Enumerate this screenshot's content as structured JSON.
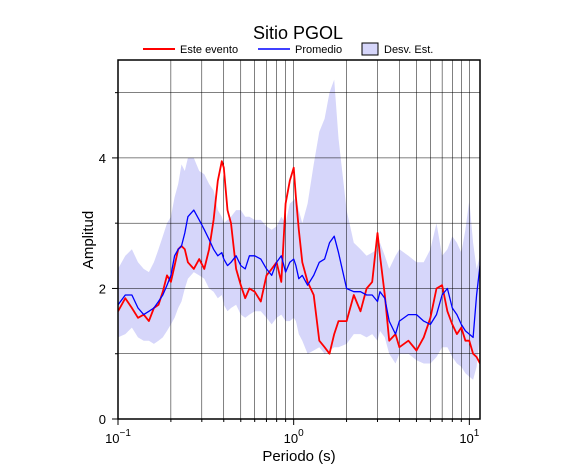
{
  "chart_data": {
    "type": "line",
    "title": "Sitio PGOL",
    "xlabel": "Periodo (s)",
    "ylabel": "Amplitud",
    "x_scale": "log",
    "xlim": [
      0.1,
      11.5
    ],
    "ylim": [
      0,
      5.5
    ],
    "y_ticks": [
      0,
      2,
      4
    ],
    "y_tick_labels": [
      "0",
      "2",
      "4"
    ],
    "x_ticks": [
      {
        "value": 0.1,
        "base": "10",
        "exp": "−1"
      },
      {
        "value": 1,
        "base": "10",
        "exp": "0"
      },
      {
        "value": 10,
        "base": "10",
        "exp": "1"
      }
    ],
    "grid": true,
    "legend": {
      "placement": "top",
      "entries": [
        {
          "label": "Este evento",
          "kind": "line",
          "color": "#ff0000"
        },
        {
          "label": "Promedio",
          "kind": "line",
          "color": "#0000ff"
        },
        {
          "label": "Desv. Est.",
          "kind": "band",
          "color": "#d6d6fa"
        }
      ]
    },
    "series": [
      {
        "name": "Este evento",
        "color": "#ff0000",
        "x": [
          0.1,
          0.11,
          0.12,
          0.13,
          0.14,
          0.15,
          0.16,
          0.17,
          0.18,
          0.19,
          0.2,
          0.21,
          0.22,
          0.23,
          0.24,
          0.25,
          0.27,
          0.29,
          0.31,
          0.33,
          0.35,
          0.37,
          0.39,
          0.4,
          0.42,
          0.44,
          0.47,
          0.5,
          0.53,
          0.56,
          0.6,
          0.65,
          0.7,
          0.75,
          0.8,
          0.85,
          0.9,
          0.95,
          1.0,
          1.03,
          1.07,
          1.12,
          1.2,
          1.3,
          1.4,
          1.5,
          1.6,
          1.7,
          1.8,
          2.0,
          2.2,
          2.4,
          2.6,
          2.8,
          3.0,
          3.1,
          3.3,
          3.5,
          3.8,
          4.0,
          4.5,
          5.0,
          5.5,
          6.0,
          6.5,
          7.0,
          7.5,
          8.0,
          8.5,
          9.0,
          9.5,
          10.0,
          10.5,
          11.0,
          11.5
        ],
        "y": [
          1.65,
          1.85,
          1.7,
          1.55,
          1.6,
          1.5,
          1.7,
          1.75,
          1.95,
          2.2,
          2.1,
          2.35,
          2.6,
          2.65,
          2.6,
          2.4,
          2.3,
          2.45,
          2.3,
          2.6,
          3.05,
          3.65,
          3.95,
          3.85,
          3.2,
          3.0,
          2.3,
          2.05,
          1.85,
          2.0,
          1.95,
          1.8,
          2.2,
          2.3,
          2.4,
          2.1,
          3.3,
          3.65,
          3.85,
          3.4,
          2.9,
          2.4,
          2.1,
          1.9,
          1.2,
          1.1,
          1.0,
          1.3,
          1.5,
          1.5,
          1.9,
          1.65,
          2.0,
          2.1,
          2.85,
          2.5,
          1.9,
          1.2,
          1.3,
          1.1,
          1.2,
          1.05,
          1.25,
          1.55,
          2.0,
          2.05,
          1.65,
          1.45,
          1.3,
          1.4,
          1.2,
          1.2,
          1.0,
          0.95,
          0.85
        ]
      },
      {
        "name": "Promedio",
        "color": "#0000ff",
        "x": [
          0.1,
          0.11,
          0.12,
          0.13,
          0.14,
          0.15,
          0.16,
          0.17,
          0.18,
          0.19,
          0.2,
          0.21,
          0.22,
          0.23,
          0.24,
          0.25,
          0.27,
          0.29,
          0.31,
          0.33,
          0.35,
          0.37,
          0.39,
          0.4,
          0.42,
          0.44,
          0.47,
          0.5,
          0.53,
          0.56,
          0.6,
          0.65,
          0.7,
          0.75,
          0.8,
          0.85,
          0.9,
          0.95,
          1.0,
          1.03,
          1.07,
          1.12,
          1.2,
          1.3,
          1.4,
          1.5,
          1.6,
          1.7,
          1.8,
          2.0,
          2.2,
          2.4,
          2.6,
          2.8,
          3.0,
          3.1,
          3.3,
          3.5,
          3.8,
          4.0,
          4.5,
          5.0,
          5.5,
          6.0,
          6.5,
          7.0,
          7.5,
          8.0,
          8.5,
          9.0,
          9.5,
          10.0,
          10.5,
          11.0,
          11.5
        ],
        "y": [
          1.75,
          1.9,
          1.9,
          1.7,
          1.6,
          1.65,
          1.7,
          1.8,
          1.9,
          2.05,
          2.2,
          2.5,
          2.6,
          2.65,
          2.85,
          3.1,
          3.2,
          3.05,
          2.9,
          2.75,
          2.6,
          2.5,
          2.55,
          2.45,
          2.35,
          2.4,
          2.5,
          2.35,
          2.3,
          2.5,
          2.5,
          2.45,
          2.3,
          2.2,
          2.4,
          2.5,
          2.25,
          2.4,
          2.45,
          2.35,
          2.15,
          2.2,
          2.05,
          2.2,
          2.4,
          2.45,
          2.7,
          2.8,
          2.55,
          2.0,
          1.95,
          1.95,
          1.9,
          1.9,
          1.8,
          1.95,
          1.85,
          1.5,
          1.3,
          1.5,
          1.6,
          1.6,
          1.5,
          1.45,
          1.6,
          1.9,
          2.0,
          1.7,
          1.6,
          1.45,
          1.35,
          1.3,
          1.25,
          1.9,
          2.35
        ]
      }
    ],
    "std_band": {
      "name": "Desv. Est.",
      "color": "#d6d6fa",
      "x": [
        0.1,
        0.11,
        0.12,
        0.13,
        0.14,
        0.15,
        0.16,
        0.17,
        0.18,
        0.19,
        0.2,
        0.21,
        0.22,
        0.23,
        0.24,
        0.25,
        0.27,
        0.29,
        0.31,
        0.33,
        0.35,
        0.37,
        0.39,
        0.4,
        0.42,
        0.44,
        0.47,
        0.5,
        0.53,
        0.56,
        0.6,
        0.65,
        0.7,
        0.75,
        0.8,
        0.85,
        0.9,
        0.95,
        1.0,
        1.03,
        1.07,
        1.12,
        1.2,
        1.3,
        1.4,
        1.5,
        1.6,
        1.7,
        1.8,
        2.0,
        2.2,
        2.4,
        2.6,
        2.8,
        3.0,
        3.1,
        3.3,
        3.5,
        3.8,
        4.0,
        4.5,
        5.0,
        5.5,
        6.0,
        6.5,
        7.0,
        7.5,
        8.0,
        8.5,
        9.0,
        9.5,
        10.0,
        10.5,
        11.0,
        11.5
      ],
      "upper": [
        2.3,
        2.5,
        2.6,
        2.4,
        2.3,
        2.25,
        2.4,
        2.6,
        2.8,
        3.0,
        3.1,
        3.4,
        3.6,
        3.9,
        3.8,
        4.0,
        4.0,
        3.8,
        3.75,
        3.6,
        3.5,
        3.2,
        3.1,
        3.0,
        3.05,
        3.1,
        3.2,
        3.2,
        3.1,
        3.1,
        3.05,
        3.05,
        2.95,
        2.9,
        2.95,
        3.1,
        3.0,
        3.3,
        3.35,
        3.4,
        3.2,
        3.0,
        3.3,
        3.9,
        4.4,
        4.6,
        5.0,
        5.2,
        4.3,
        3.2,
        2.7,
        2.6,
        2.5,
        2.55,
        2.6,
        2.7,
        2.5,
        2.3,
        2.5,
        2.6,
        2.5,
        2.4,
        2.4,
        2.6,
        3.0,
        2.5,
        2.6,
        2.8,
        2.7,
        2.55,
        2.9,
        3.35,
        2.7,
        2.3,
        2.5
      ],
      "lower": [
        1.25,
        1.3,
        1.4,
        1.25,
        1.2,
        1.2,
        1.15,
        1.2,
        1.25,
        1.35,
        1.45,
        1.55,
        1.7,
        1.8,
        2.0,
        2.15,
        2.25,
        2.2,
        2.15,
        2.0,
        1.95,
        1.85,
        1.9,
        1.75,
        1.65,
        1.7,
        1.75,
        1.6,
        1.55,
        1.6,
        1.65,
        1.65,
        1.55,
        1.45,
        1.55,
        1.6,
        1.5,
        1.5,
        1.55,
        1.5,
        1.3,
        1.2,
        1.0,
        1.05,
        1.1,
        1.0,
        1.05,
        1.1,
        1.1,
        1.15,
        1.3,
        1.3,
        1.25,
        1.3,
        1.2,
        1.35,
        1.25,
        1.0,
        0.85,
        1.0,
        1.0,
        0.9,
        0.85,
        0.85,
        0.95,
        1.1,
        1.1,
        0.95,
        0.85,
        0.8,
        0.7,
        0.65,
        0.6,
        0.8,
        1.3
      ]
    }
  }
}
